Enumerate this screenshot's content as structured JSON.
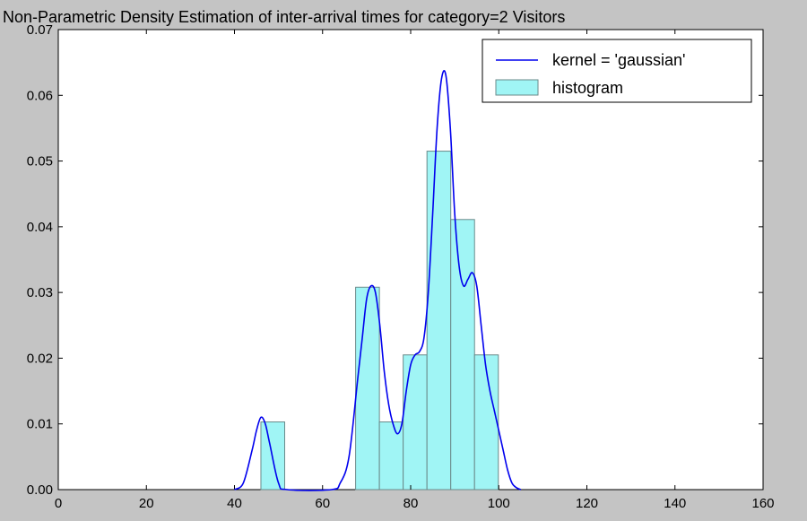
{
  "chart_data": {
    "type": "histogram+line",
    "title": "Non-Parametric Density Estimation of inter-arrival times for category=2 Visitors",
    "xlabel": "",
    "ylabel": "",
    "xlim": [
      0,
      160
    ],
    "ylim": [
      0,
      0.07
    ],
    "xticks": [
      "0",
      "20",
      "40",
      "60",
      "80",
      "100",
      "120",
      "140",
      "160"
    ],
    "yticks": [
      "0.00",
      "0.01",
      "0.02",
      "0.03",
      "0.04",
      "0.05",
      "0.06",
      "0.07"
    ],
    "grid": false,
    "legend_position": "top-right",
    "legend": [
      {
        "label": "kernel = 'gaussian'",
        "kind": "line",
        "color": "#0000ee"
      },
      {
        "label": "histogram",
        "kind": "patch",
        "color": "#a0f5f5"
      }
    ],
    "histogram": {
      "color": "#a0f5f5",
      "edge_color": "#6a8a8a",
      "bins": [
        {
          "x0": 46.0,
          "x1": 51.4,
          "value": 0.0103
        },
        {
          "x0": 67.5,
          "x1": 72.9,
          "value": 0.0308
        },
        {
          "x0": 72.9,
          "x1": 78.3,
          "value": 0.0103
        },
        {
          "x0": 78.3,
          "x1": 83.7,
          "value": 0.0205
        },
        {
          "x0": 83.7,
          "x1": 89.1,
          "value": 0.0515
        },
        {
          "x0": 89.1,
          "x1": 94.5,
          "value": 0.0411
        },
        {
          "x0": 94.5,
          "x1": 99.9,
          "value": 0.0205
        }
      ]
    },
    "series": [
      {
        "name": "kernel = 'gaussian'",
        "color": "#0000ee",
        "x": [
          40,
          42,
          44,
          45,
          46,
          47,
          48,
          50,
          52,
          62,
          64,
          66,
          68,
          69,
          70,
          71,
          72,
          73,
          74,
          75,
          76,
          77,
          78,
          79,
          80,
          81,
          82,
          83,
          84,
          85,
          86,
          87,
          88,
          89,
          90,
          91,
          92,
          93,
          94,
          95,
          96,
          97,
          98,
          99,
          100,
          101,
          102,
          103,
          104,
          105
        ],
        "y": [
          0.0,
          0.001,
          0.006,
          0.009,
          0.011,
          0.01,
          0.007,
          0.001,
          0.0,
          0.0,
          0.001,
          0.005,
          0.017,
          0.023,
          0.029,
          0.031,
          0.03,
          0.025,
          0.018,
          0.013,
          0.01,
          0.0085,
          0.01,
          0.015,
          0.019,
          0.0205,
          0.021,
          0.023,
          0.03,
          0.042,
          0.055,
          0.0625,
          0.063,
          0.055,
          0.042,
          0.034,
          0.031,
          0.032,
          0.033,
          0.031,
          0.025,
          0.019,
          0.015,
          0.012,
          0.009,
          0.006,
          0.003,
          0.001,
          0.0003,
          0.0
        ]
      }
    ]
  }
}
